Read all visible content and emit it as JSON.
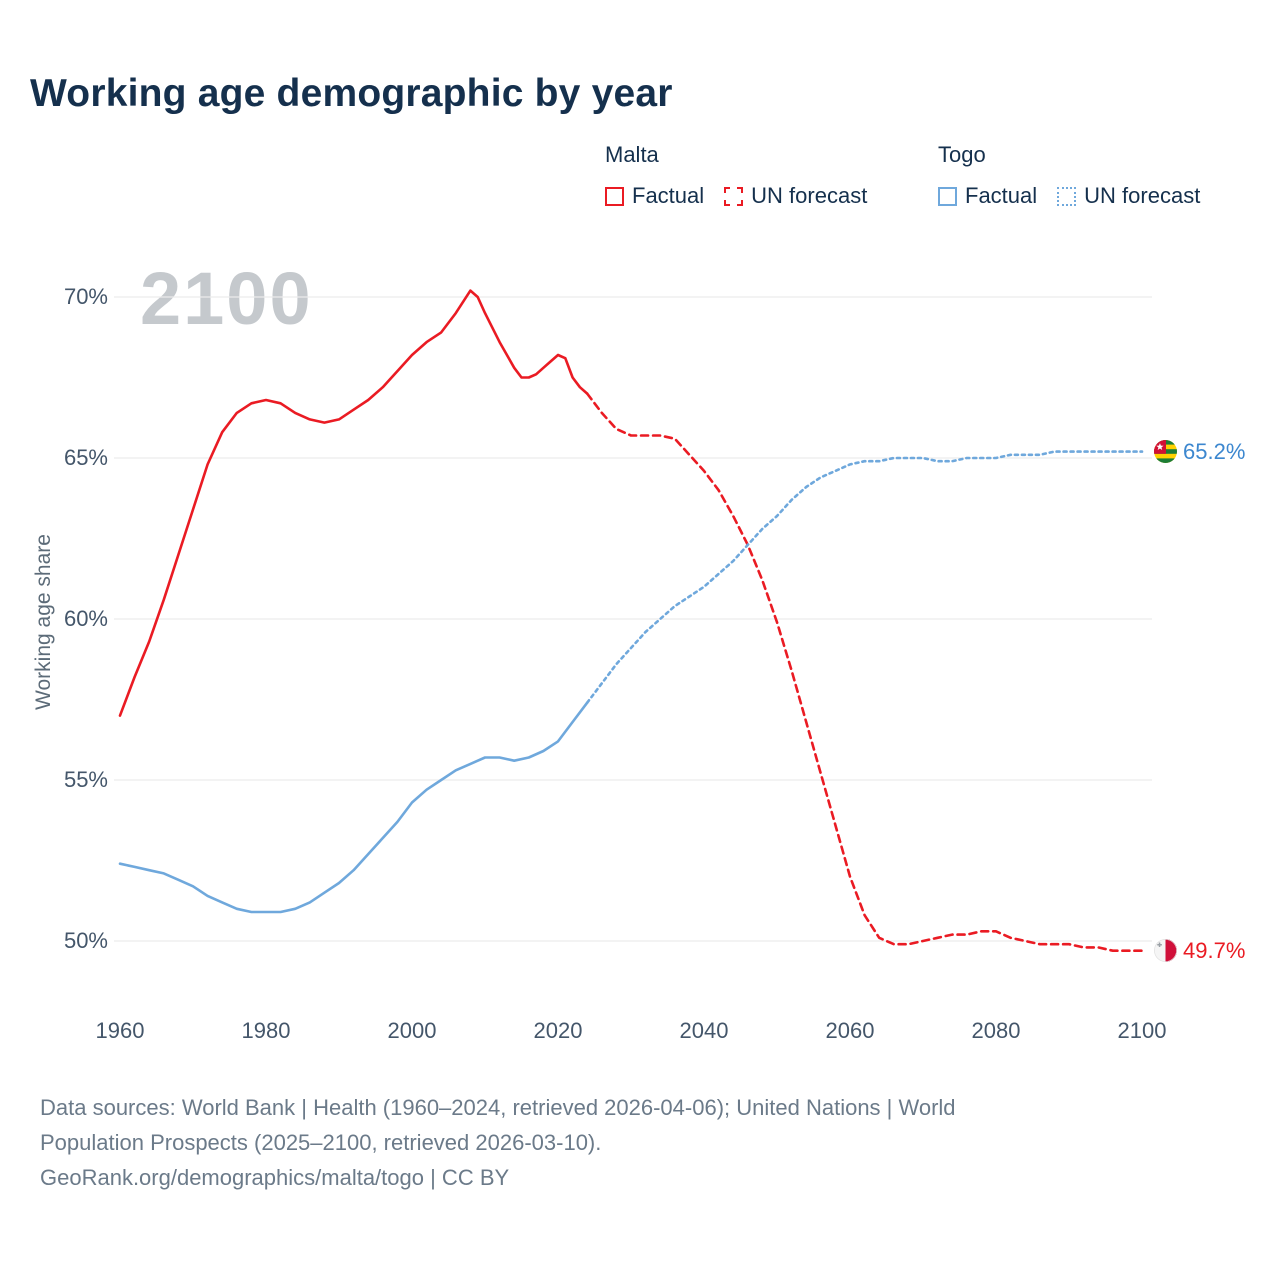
{
  "title": "Working age demographic by year",
  "watermark": "2100",
  "ylabel": "Working age share",
  "legend": {
    "groups": [
      {
        "name": "Malta",
        "color": "#ea1b23",
        "items": [
          {
            "label": "Factual",
            "style": "solid"
          },
          {
            "label": "UN forecast",
            "style": "dashed"
          }
        ]
      },
      {
        "name": "Togo",
        "color": "#6fa8dc",
        "items": [
          {
            "label": "Factual",
            "style": "solid"
          },
          {
            "label": "UN forecast",
            "style": "dotted"
          }
        ]
      }
    ]
  },
  "end_labels": [
    {
      "series": "Togo",
      "value": "65.2%",
      "color": "#3c87cf",
      "flag": "togo-flag-icon"
    },
    {
      "series": "Malta",
      "value": "49.7%",
      "color": "#ea1b23",
      "flag": "malta-flag-icon"
    }
  ],
  "footer": {
    "line1": "Data sources: World Bank | Health (1960–2024, retrieved 2026-04-06); United Nations | World",
    "line2": "Population Prospects (2025–2100, retrieved 2026-03-10).",
    "line3": "GeoRank.org/demographics/malta/togo | CC BY"
  },
  "chart_data": {
    "type": "line",
    "title": "Working age demographic by year",
    "xlabel": "",
    "ylabel": "Working age share",
    "xlim": [
      1960,
      2100
    ],
    "ylim": [
      48,
      71
    ],
    "grid": "horizontal",
    "legend_position": "top-right",
    "yticks": [
      50,
      55,
      60,
      65,
      70
    ],
    "xticks": [
      1960,
      1980,
      2000,
      2020,
      2040,
      2060,
      2080,
      2100
    ],
    "series": [
      {
        "name": "Malta Factual",
        "color": "#ea1b23",
        "style": "solid",
        "points": [
          [
            1960,
            57.0
          ],
          [
            1962,
            58.2
          ],
          [
            1964,
            59.3
          ],
          [
            1966,
            60.6
          ],
          [
            1968,
            62.0
          ],
          [
            1970,
            63.4
          ],
          [
            1972,
            64.8
          ],
          [
            1974,
            65.8
          ],
          [
            1976,
            66.4
          ],
          [
            1978,
            66.7
          ],
          [
            1980,
            66.8
          ],
          [
            1982,
            66.7
          ],
          [
            1984,
            66.4
          ],
          [
            1986,
            66.2
          ],
          [
            1988,
            66.1
          ],
          [
            1990,
            66.2
          ],
          [
            1992,
            66.5
          ],
          [
            1994,
            66.8
          ],
          [
            1996,
            67.2
          ],
          [
            1998,
            67.7
          ],
          [
            2000,
            68.2
          ],
          [
            2002,
            68.6
          ],
          [
            2004,
            68.9
          ],
          [
            2006,
            69.5
          ],
          [
            2008,
            70.2
          ],
          [
            2009,
            70.0
          ],
          [
            2010,
            69.5
          ],
          [
            2012,
            68.6
          ],
          [
            2014,
            67.8
          ],
          [
            2015,
            67.5
          ],
          [
            2016,
            67.5
          ],
          [
            2017,
            67.6
          ],
          [
            2018,
            67.8
          ],
          [
            2019,
            68.0
          ],
          [
            2020,
            68.2
          ],
          [
            2021,
            68.1
          ],
          [
            2022,
            67.5
          ],
          [
            2023,
            67.2
          ],
          [
            2024,
            67.0
          ]
        ]
      },
      {
        "name": "Malta UN forecast",
        "color": "#ea1b23",
        "style": "dashed",
        "points": [
          [
            2024,
            67.0
          ],
          [
            2026,
            66.4
          ],
          [
            2028,
            65.9
          ],
          [
            2030,
            65.7
          ],
          [
            2032,
            65.7
          ],
          [
            2034,
            65.7
          ],
          [
            2036,
            65.6
          ],
          [
            2038,
            65.1
          ],
          [
            2040,
            64.6
          ],
          [
            2042,
            64.0
          ],
          [
            2044,
            63.2
          ],
          [
            2046,
            62.3
          ],
          [
            2048,
            61.2
          ],
          [
            2050,
            59.9
          ],
          [
            2052,
            58.4
          ],
          [
            2054,
            56.8
          ],
          [
            2056,
            55.2
          ],
          [
            2058,
            53.6
          ],
          [
            2060,
            52.0
          ],
          [
            2062,
            50.8
          ],
          [
            2064,
            50.1
          ],
          [
            2066,
            49.9
          ],
          [
            2068,
            49.9
          ],
          [
            2070,
            50.0
          ],
          [
            2072,
            50.1
          ],
          [
            2074,
            50.2
          ],
          [
            2076,
            50.2
          ],
          [
            2078,
            50.3
          ],
          [
            2080,
            50.3
          ],
          [
            2082,
            50.1
          ],
          [
            2084,
            50.0
          ],
          [
            2086,
            49.9
          ],
          [
            2088,
            49.9
          ],
          [
            2090,
            49.9
          ],
          [
            2092,
            49.8
          ],
          [
            2094,
            49.8
          ],
          [
            2096,
            49.7
          ],
          [
            2098,
            49.7
          ],
          [
            2100,
            49.7
          ]
        ]
      },
      {
        "name": "Togo Factual",
        "color": "#6fa8dc",
        "style": "solid",
        "points": [
          [
            1960,
            52.4
          ],
          [
            1962,
            52.3
          ],
          [
            1964,
            52.2
          ],
          [
            1966,
            52.1
          ],
          [
            1968,
            51.9
          ],
          [
            1970,
            51.7
          ],
          [
            1972,
            51.4
          ],
          [
            1974,
            51.2
          ],
          [
            1976,
            51.0
          ],
          [
            1978,
            50.9
          ],
          [
            1980,
            50.9
          ],
          [
            1982,
            50.9
          ],
          [
            1984,
            51.0
          ],
          [
            1986,
            51.2
          ],
          [
            1988,
            51.5
          ],
          [
            1990,
            51.8
          ],
          [
            1992,
            52.2
          ],
          [
            1994,
            52.7
          ],
          [
            1996,
            53.2
          ],
          [
            1998,
            53.7
          ],
          [
            2000,
            54.3
          ],
          [
            2002,
            54.7
          ],
          [
            2004,
            55.0
          ],
          [
            2006,
            55.3
          ],
          [
            2008,
            55.5
          ],
          [
            2010,
            55.7
          ],
          [
            2012,
            55.7
          ],
          [
            2014,
            55.6
          ],
          [
            2016,
            55.7
          ],
          [
            2018,
            55.9
          ],
          [
            2020,
            56.2
          ],
          [
            2022,
            56.8
          ],
          [
            2024,
            57.4
          ]
        ]
      },
      {
        "name": "Togo UN forecast",
        "color": "#6fa8dc",
        "style": "dotted",
        "points": [
          [
            2024,
            57.4
          ],
          [
            2026,
            58.0
          ],
          [
            2028,
            58.6
          ],
          [
            2030,
            59.1
          ],
          [
            2032,
            59.6
          ],
          [
            2034,
            60.0
          ],
          [
            2036,
            60.4
          ],
          [
            2038,
            60.7
          ],
          [
            2040,
            61.0
          ],
          [
            2042,
            61.4
          ],
          [
            2044,
            61.8
          ],
          [
            2046,
            62.3
          ],
          [
            2048,
            62.8
          ],
          [
            2050,
            63.2
          ],
          [
            2052,
            63.7
          ],
          [
            2054,
            64.1
          ],
          [
            2056,
            64.4
          ],
          [
            2058,
            64.6
          ],
          [
            2060,
            64.8
          ],
          [
            2062,
            64.9
          ],
          [
            2064,
            64.9
          ],
          [
            2066,
            65.0
          ],
          [
            2068,
            65.0
          ],
          [
            2070,
            65.0
          ],
          [
            2072,
            64.9
          ],
          [
            2074,
            64.9
          ],
          [
            2076,
            65.0
          ],
          [
            2078,
            65.0
          ],
          [
            2080,
            65.0
          ],
          [
            2082,
            65.1
          ],
          [
            2084,
            65.1
          ],
          [
            2086,
            65.1
          ],
          [
            2088,
            65.2
          ],
          [
            2090,
            65.2
          ],
          [
            2092,
            65.2
          ],
          [
            2094,
            65.2
          ],
          [
            2096,
            65.2
          ],
          [
            2098,
            65.2
          ],
          [
            2100,
            65.2
          ]
        ]
      }
    ]
  }
}
